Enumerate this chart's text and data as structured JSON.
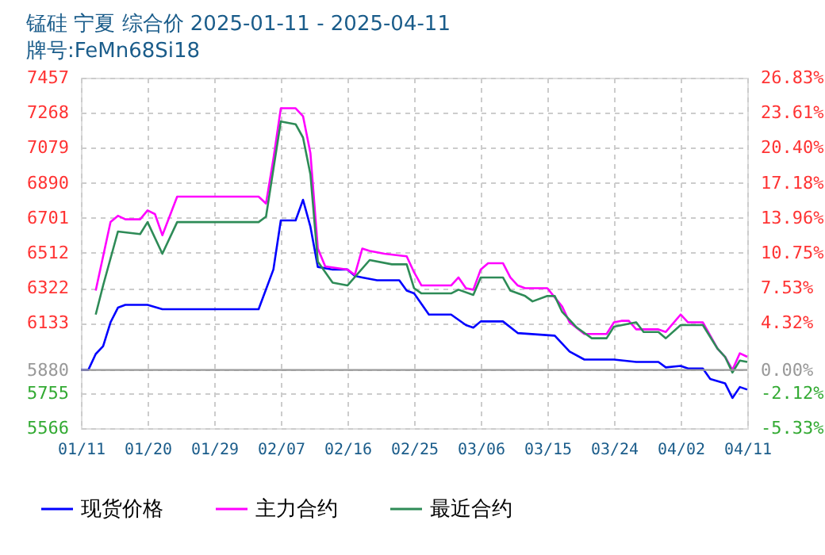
{
  "chart_data": {
    "type": "line",
    "title": "锰硅  宁夏  综合价  2025-01-11 - 2025-04-11",
    "subtitle": "牌号:FeMn68Si18",
    "xlim": [
      "2025-01-11",
      "2025-04-11"
    ],
    "xticks": [
      {
        "value": "2025-01-11",
        "label": "01/11"
      },
      {
        "value": "2025-01-20",
        "label": "01/20"
      },
      {
        "value": "2025-01-29",
        "label": "01/29"
      },
      {
        "value": "2025-02-07",
        "label": "02/07"
      },
      {
        "value": "2025-02-16",
        "label": "02/16"
      },
      {
        "value": "2025-02-25",
        "label": "02/25"
      },
      {
        "value": "2025-03-06",
        "label": "03/06"
      },
      {
        "value": "2025-03-15",
        "label": "03/15"
      },
      {
        "value": "2025-03-24",
        "label": "03/24"
      },
      {
        "value": "2025-04-02",
        "label": "04/02"
      },
      {
        "value": "2025-04-11",
        "label": "04/11"
      }
    ],
    "ylim": [
      5566,
      7457
    ],
    "yticks": [
      5566,
      5755,
      5880,
      6133,
      6322,
      6512,
      6701,
      6890,
      7079,
      7268,
      7457
    ],
    "y2lim": [
      -5.33,
      26.83
    ],
    "y2ticks": [
      {
        "value": -5.33,
        "label": "-5.33%"
      },
      {
        "value": -2.12,
        "label": "-2.12%"
      },
      {
        "value": 0,
        "label": "0.00%"
      },
      {
        "value": 4.32,
        "label": "4.32%"
      },
      {
        "value": 7.53,
        "label": "7.53%"
      },
      {
        "value": 10.75,
        "label": "10.75%"
      },
      {
        "value": 13.96,
        "label": "13.96%"
      },
      {
        "value": 17.18,
        "label": "17.18%"
      },
      {
        "value": 20.4,
        "label": "20.40%"
      },
      {
        "value": 23.61,
        "label": "23.61%"
      },
      {
        "value": 26.83,
        "label": "26.83%"
      }
    ],
    "ref_lines": [
      {
        "axis": "y",
        "value": 5880,
        "color": "#999999",
        "line_style": "solid"
      }
    ],
    "grid": true,
    "legend": "bottom",
    "marker": "none",
    "line_style": "solid",
    "series": [
      {
        "name": "现货价格",
        "color": "#0000ff",
        "x": [
          "2025-01-11",
          "2025-01-12",
          "2025-01-13",
          "2025-01-14",
          "2025-01-15",
          "2025-01-16",
          "2025-01-17",
          "2025-01-20",
          "2025-01-22",
          "2025-02-04",
          "2025-02-06",
          "2025-02-07",
          "2025-02-09",
          "2025-02-10",
          "2025-02-11",
          "2025-02-12",
          "2025-02-14",
          "2025-02-16",
          "2025-02-17",
          "2025-02-18",
          "2025-02-20",
          "2025-02-23",
          "2025-02-24",
          "2025-02-25",
          "2025-02-27",
          "2025-03-02",
          "2025-03-04",
          "2025-03-05",
          "2025-03-06",
          "2025-03-09",
          "2025-03-11",
          "2025-03-16",
          "2025-03-18",
          "2025-03-20",
          "2025-03-24",
          "2025-03-27",
          "2025-03-30",
          "2025-03-31",
          "2025-04-02",
          "2025-04-03",
          "2025-04-05",
          "2025-04-06",
          "2025-04-08",
          "2025-04-09",
          "2025-04-10",
          "2025-04-11"
        ],
        "values": [
          5880,
          5880,
          5966,
          6008,
          6137,
          6216,
          6231,
          6231,
          6208,
          6208,
          6422,
          6687,
          6687,
          6798,
          6653,
          6436,
          6422,
          6422,
          6387,
          6379,
          6364,
          6364,
          6308,
          6293,
          6179,
          6179,
          6122,
          6108,
          6142,
          6142,
          6079,
          6065,
          5979,
          5936,
          5936,
          5923,
          5923,
          5894,
          5902,
          5888,
          5888,
          5831,
          5808,
          5729,
          5788,
          5774
        ]
      },
      {
        "name": "主力合约",
        "color": "#ff00ff",
        "x": [
          "2025-01-13",
          "2025-01-15",
          "2025-01-16",
          "2025-01-17",
          "2025-01-19",
          "2025-01-20",
          "2025-01-21",
          "2025-01-22",
          "2025-01-24",
          "2025-02-04",
          "2025-02-05",
          "2025-02-06",
          "2025-02-07",
          "2025-02-09",
          "2025-02-10",
          "2025-02-11",
          "2025-02-12",
          "2025-02-13",
          "2025-02-16",
          "2025-02-17",
          "2025-02-18",
          "2025-02-19",
          "2025-02-21",
          "2025-02-24",
          "2025-02-25",
          "2025-02-26",
          "2025-03-02",
          "2025-03-03",
          "2025-03-04",
          "2025-03-05",
          "2025-03-06",
          "2025-03-07",
          "2025-03-09",
          "2025-03-10",
          "2025-03-11",
          "2025-03-12",
          "2025-03-15",
          "2025-03-17",
          "2025-03-18",
          "2025-03-20",
          "2025-03-23",
          "2025-03-24",
          "2025-03-25",
          "2025-03-26",
          "2025-03-27",
          "2025-03-30",
          "2025-03-31",
          "2025-04-02",
          "2025-04-03",
          "2025-04-05",
          "2025-04-07",
          "2025-04-08",
          "2025-04-09",
          "2025-04-10",
          "2025-04-11"
        ],
        "values": [
          6308,
          6678,
          6712,
          6693,
          6693,
          6741,
          6721,
          6607,
          6815,
          6815,
          6778,
          7020,
          7292,
          7292,
          7249,
          7049,
          6535,
          6439,
          6422,
          6393,
          6535,
          6522,
          6507,
          6493,
          6407,
          6336,
          6336,
          6379,
          6321,
          6313,
          6422,
          6456,
          6456,
          6379,
          6336,
          6321,
          6321,
          6222,
          6137,
          6074,
          6074,
          6137,
          6145,
          6145,
          6099,
          6099,
          6085,
          6179,
          6137,
          6137,
          5994,
          5951,
          5880,
          5970,
          5951
        ]
      },
      {
        "name": "最近合约",
        "color": "#2e8b57",
        "x": [
          "2025-01-13",
          "2025-01-14",
          "2025-01-16",
          "2025-01-19",
          "2025-01-20",
          "2025-01-22",
          "2025-01-24",
          "2025-02-04",
          "2025-02-05",
          "2025-02-07",
          "2025-02-09",
          "2025-02-10",
          "2025-02-11",
          "2025-02-12",
          "2025-02-14",
          "2025-02-16",
          "2025-02-19",
          "2025-02-22",
          "2025-02-24",
          "2025-02-25",
          "2025-02-26",
          "2025-03-02",
          "2025-03-03",
          "2025-03-05",
          "2025-03-06",
          "2025-03-09",
          "2025-03-10",
          "2025-03-12",
          "2025-03-13",
          "2025-03-15",
          "2025-03-16",
          "2025-03-17",
          "2025-03-19",
          "2025-03-21",
          "2025-03-23",
          "2025-03-24",
          "2025-03-27",
          "2025-03-28",
          "2025-03-30",
          "2025-03-31",
          "2025-04-02",
          "2025-04-05",
          "2025-04-07",
          "2025-04-08",
          "2025-04-09",
          "2025-04-10",
          "2025-04-11"
        ],
        "values": [
          6179,
          6336,
          6627,
          6613,
          6678,
          6507,
          6678,
          6678,
          6707,
          7221,
          7206,
          7134,
          6935,
          6464,
          6351,
          6336,
          6473,
          6450,
          6450,
          6321,
          6293,
          6293,
          6313,
          6285,
          6379,
          6379,
          6308,
          6279,
          6250,
          6279,
          6279,
          6193,
          6108,
          6051,
          6051,
          6114,
          6137,
          6085,
          6085,
          6051,
          6122,
          6122,
          5994,
          5951,
          5866,
          5931,
          5923
        ]
      }
    ]
  }
}
